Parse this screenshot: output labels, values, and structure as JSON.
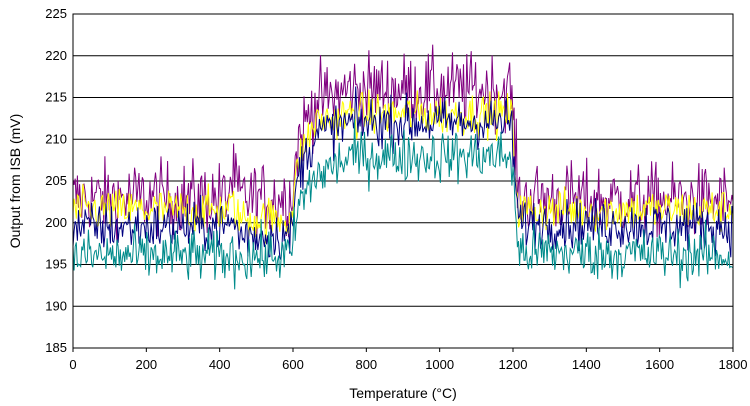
{
  "chart_data": {
    "type": "line",
    "title": "",
    "xlabel": "Temperature (°C)",
    "ylabel": "Output from ISB (mV)",
    "xlim": [
      0,
      1800
    ],
    "ylim": [
      185,
      225
    ],
    "xticks": [
      0,
      200,
      400,
      600,
      800,
      1000,
      1200,
      1400,
      1600,
      1800
    ],
    "yticks": [
      185,
      190,
      195,
      200,
      205,
      210,
      215,
      220,
      225
    ],
    "grid": "horizontal",
    "legend": "none",
    "series": [
      {
        "color": "#800080",
        "noise": 2.2,
        "points": [
          [
            0,
            203
          ],
          [
            420,
            203
          ],
          [
            430,
            205
          ],
          [
            445,
            205
          ],
          [
            450,
            203
          ],
          [
            595,
            203
          ],
          [
            615,
            210
          ],
          [
            660,
            214.5
          ],
          [
            760,
            216
          ],
          [
            1000,
            216
          ],
          [
            1195,
            216
          ],
          [
            1215,
            203
          ],
          [
            1800,
            202.5
          ]
        ]
      },
      {
        "color": "#ffff00",
        "noise": 1.3,
        "points": [
          [
            0,
            201.5
          ],
          [
            420,
            201.5
          ],
          [
            430,
            202
          ],
          [
            445,
            202
          ],
          [
            450,
            200.5
          ],
          [
            595,
            200.5
          ],
          [
            615,
            207.5
          ],
          [
            660,
            212
          ],
          [
            760,
            213
          ],
          [
            1000,
            213
          ],
          [
            1195,
            213
          ],
          [
            1215,
            201.5
          ],
          [
            1800,
            201.5
          ]
        ]
      },
      {
        "color": "#000080",
        "noise": 1.5,
        "points": [
          [
            0,
            199.5
          ],
          [
            420,
            199.5
          ],
          [
            430,
            200
          ],
          [
            445,
            200
          ],
          [
            450,
            198.5
          ],
          [
            595,
            198.5
          ],
          [
            615,
            206
          ],
          [
            660,
            210.5
          ],
          [
            760,
            212
          ],
          [
            1000,
            212
          ],
          [
            1195,
            212
          ],
          [
            1215,
            200
          ],
          [
            1800,
            199.5
          ]
        ]
      },
      {
        "color": "#008b8b",
        "noise": 1.6,
        "points": [
          [
            0,
            196
          ],
          [
            420,
            196
          ],
          [
            430,
            196
          ],
          [
            445,
            196
          ],
          [
            450,
            196
          ],
          [
            595,
            196
          ],
          [
            615,
            202
          ],
          [
            660,
            205.5
          ],
          [
            760,
            208
          ],
          [
            1000,
            208
          ],
          [
            1195,
            208
          ],
          [
            1215,
            196.5
          ],
          [
            1800,
            196
          ]
        ]
      }
    ]
  }
}
